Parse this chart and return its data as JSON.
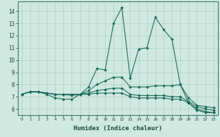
{
  "xlabel": "Humidex (Indice chaleur)",
  "background_color": "#cfe8e0",
  "grid_color": "#b0d4ca",
  "line_color": "#1a6b5a",
  "x_ticks": [
    0,
    1,
    2,
    3,
    4,
    5,
    6,
    7,
    8,
    9,
    10,
    11,
    12,
    13,
    14,
    15,
    16,
    17,
    18,
    19,
    20,
    21,
    22,
    23
  ],
  "xlim": [
    -0.5,
    23.5
  ],
  "ylim": [
    5.5,
    14.8
  ],
  "yticks": [
    6,
    7,
    8,
    9,
    10,
    11,
    12,
    13,
    14
  ],
  "series": [
    [
      7.2,
      7.4,
      7.4,
      7.2,
      6.9,
      6.8,
      6.8,
      7.2,
      7.8,
      9.3,
      9.2,
      13.0,
      14.3,
      8.5,
      10.9,
      11.0,
      13.5,
      12.5,
      11.7,
      8.0,
      6.5,
      5.9,
      5.7,
      5.7
    ],
    [
      7.2,
      7.4,
      7.4,
      7.3,
      7.2,
      7.2,
      7.1,
      7.2,
      7.5,
      8.0,
      8.3,
      8.6,
      8.6,
      7.8,
      7.8,
      7.8,
      7.9,
      7.9,
      7.9,
      8.0,
      6.9,
      6.3,
      6.2,
      6.1
    ],
    [
      7.2,
      7.4,
      7.4,
      7.3,
      7.2,
      7.2,
      7.2,
      7.2,
      7.3,
      7.5,
      7.6,
      7.7,
      7.7,
      7.2,
      7.1,
      7.1,
      7.1,
      7.1,
      7.0,
      7.0,
      6.6,
      6.2,
      6.0,
      5.9
    ],
    [
      7.2,
      7.4,
      7.4,
      7.3,
      7.2,
      7.2,
      7.2,
      7.2,
      7.2,
      7.3,
      7.3,
      7.3,
      7.3,
      7.0,
      6.9,
      6.9,
      6.9,
      6.9,
      6.8,
      6.8,
      6.5,
      6.0,
      5.8,
      5.7
    ]
  ]
}
